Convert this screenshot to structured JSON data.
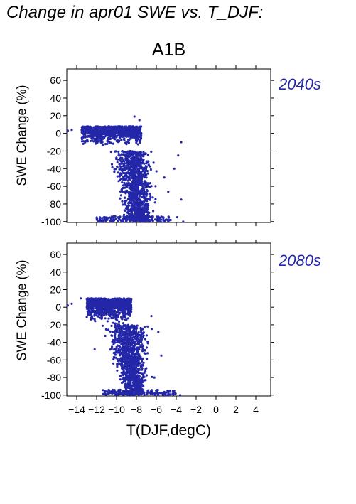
{
  "page": {
    "title": "Change in apr01 SWE vs. T_DJF:",
    "scenario": "A1B",
    "xlabel": "T(DJF,degC)"
  },
  "colors": {
    "points": "#2427a8",
    "period_label": "#2427a8",
    "axis": "#000000"
  },
  "chart_data": [
    {
      "type": "scatter",
      "period_label": "2040s",
      "ylabel": "SWE Change (%)",
      "xlim": [
        -15,
        5.5
      ],
      "ylim": [
        -101,
        73
      ],
      "xticks": [
        -14,
        -12,
        -10,
        -8,
        -6,
        -4,
        -2,
        0,
        2,
        4
      ],
      "yticks": [
        60,
        40,
        20,
        0,
        -20,
        -40,
        -60,
        -80,
        -100
      ],
      "x_tick_labels_shown": false,
      "grid": false,
      "cloud": {
        "core_x_range": [
          -13.5,
          -7.5
        ],
        "core_y_range": [
          -15,
          8
        ],
        "lower_lobe_x_range": [
          -11.5,
          -5.5
        ],
        "lower_lobe_y_range": [
          -100,
          -20
        ],
        "floor_x_range": [
          -12,
          -4.5
        ],
        "floor_y": -100
      },
      "outliers": [
        {
          "x": -8.2,
          "y": 19
        },
        {
          "x": -7.7,
          "y": 15
        },
        {
          "x": -14.5,
          "y": 4
        },
        {
          "x": -14.9,
          "y": 3
        },
        {
          "x": -3.5,
          "y": -10
        },
        {
          "x": -3.8,
          "y": -25
        },
        {
          "x": -4.2,
          "y": -40
        },
        {
          "x": -3.5,
          "y": -75
        },
        {
          "x": -3.3,
          "y": -100
        },
        {
          "x": -3.9,
          "y": -95
        },
        {
          "x": -4.8,
          "y": -66
        },
        {
          "x": -5.2,
          "y": -50
        }
      ]
    },
    {
      "type": "scatter",
      "period_label": "2080s",
      "ylabel": "SWE Change (%)",
      "xlim": [
        -15,
        5.5
      ],
      "ylim": [
        -101,
        73
      ],
      "xticks": [
        -14,
        -12,
        -10,
        -8,
        -6,
        -4,
        -2,
        0,
        2,
        4
      ],
      "yticks": [
        60,
        40,
        20,
        0,
        -20,
        -40,
        -60,
        -80,
        -100
      ],
      "x_tick_labels_shown": true,
      "grid": false,
      "cloud": {
        "core_x_range": [
          -13,
          -8.5
        ],
        "core_y_range": [
          -20,
          10
        ],
        "lower_lobe_x_range": [
          -12,
          -6
        ],
        "lower_lobe_y_range": [
          -100,
          -20
        ],
        "floor_x_range": [
          -11.5,
          -4
        ],
        "floor_y": -100
      },
      "outliers": [
        {
          "x": -14.5,
          "y": 4
        },
        {
          "x": -14.9,
          "y": 2
        },
        {
          "x": -13.6,
          "y": 10
        },
        {
          "x": -6.5,
          "y": -10
        },
        {
          "x": -5.8,
          "y": -28
        },
        {
          "x": -5.5,
          "y": -55
        },
        {
          "x": -4.2,
          "y": -95
        },
        {
          "x": -3.6,
          "y": -100
        },
        {
          "x": -6.2,
          "y": -80
        },
        {
          "x": -12.2,
          "y": -48
        }
      ]
    }
  ]
}
